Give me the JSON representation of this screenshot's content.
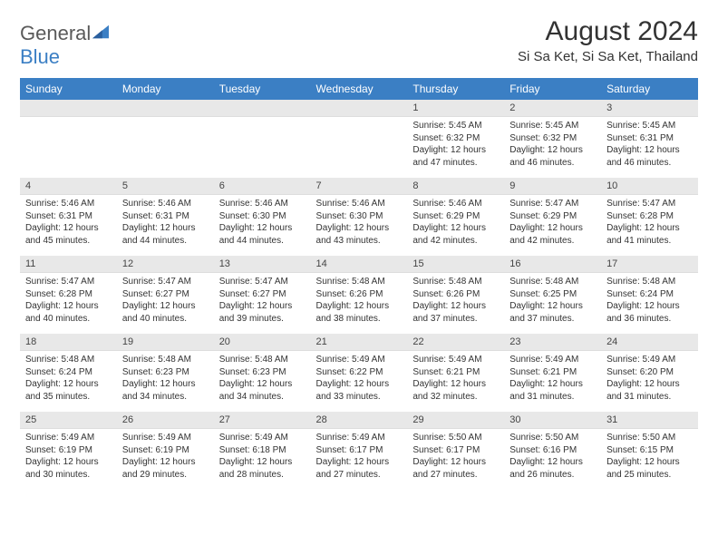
{
  "brand": {
    "part1": "General",
    "part2": "Blue"
  },
  "title": "August 2024",
  "location": "Si Sa Ket, Si Sa Ket, Thailand",
  "colors": {
    "header_bg": "#3b7fc4",
    "header_text": "#ffffff",
    "daynum_bg": "#e8e8e8",
    "body_text": "#333333",
    "logo_gray": "#5a5a5a",
    "logo_blue": "#3b7fc4"
  },
  "weekdays": [
    "Sunday",
    "Monday",
    "Tuesday",
    "Wednesday",
    "Thursday",
    "Friday",
    "Saturday"
  ],
  "layout": {
    "columns": 7,
    "rows": 5,
    "header_fontsize": 12,
    "daynum_fontsize": 11,
    "content_fontsize": 10,
    "title_fontsize": 30,
    "location_fontsize": 15
  },
  "weeks": [
    [
      null,
      null,
      null,
      null,
      {
        "n": "1",
        "sr": "5:45 AM",
        "ss": "6:32 PM",
        "dl": "12 hours and 47 minutes."
      },
      {
        "n": "2",
        "sr": "5:45 AM",
        "ss": "6:32 PM",
        "dl": "12 hours and 46 minutes."
      },
      {
        "n": "3",
        "sr": "5:45 AM",
        "ss": "6:31 PM",
        "dl": "12 hours and 46 minutes."
      }
    ],
    [
      {
        "n": "4",
        "sr": "5:46 AM",
        "ss": "6:31 PM",
        "dl": "12 hours and 45 minutes."
      },
      {
        "n": "5",
        "sr": "5:46 AM",
        "ss": "6:31 PM",
        "dl": "12 hours and 44 minutes."
      },
      {
        "n": "6",
        "sr": "5:46 AM",
        "ss": "6:30 PM",
        "dl": "12 hours and 44 minutes."
      },
      {
        "n": "7",
        "sr": "5:46 AM",
        "ss": "6:30 PM",
        "dl": "12 hours and 43 minutes."
      },
      {
        "n": "8",
        "sr": "5:46 AM",
        "ss": "6:29 PM",
        "dl": "12 hours and 42 minutes."
      },
      {
        "n": "9",
        "sr": "5:47 AM",
        "ss": "6:29 PM",
        "dl": "12 hours and 42 minutes."
      },
      {
        "n": "10",
        "sr": "5:47 AM",
        "ss": "6:28 PM",
        "dl": "12 hours and 41 minutes."
      }
    ],
    [
      {
        "n": "11",
        "sr": "5:47 AM",
        "ss": "6:28 PM",
        "dl": "12 hours and 40 minutes."
      },
      {
        "n": "12",
        "sr": "5:47 AM",
        "ss": "6:27 PM",
        "dl": "12 hours and 40 minutes."
      },
      {
        "n": "13",
        "sr": "5:47 AM",
        "ss": "6:27 PM",
        "dl": "12 hours and 39 minutes."
      },
      {
        "n": "14",
        "sr": "5:48 AM",
        "ss": "6:26 PM",
        "dl": "12 hours and 38 minutes."
      },
      {
        "n": "15",
        "sr": "5:48 AM",
        "ss": "6:26 PM",
        "dl": "12 hours and 37 minutes."
      },
      {
        "n": "16",
        "sr": "5:48 AM",
        "ss": "6:25 PM",
        "dl": "12 hours and 37 minutes."
      },
      {
        "n": "17",
        "sr": "5:48 AM",
        "ss": "6:24 PM",
        "dl": "12 hours and 36 minutes."
      }
    ],
    [
      {
        "n": "18",
        "sr": "5:48 AM",
        "ss": "6:24 PM",
        "dl": "12 hours and 35 minutes."
      },
      {
        "n": "19",
        "sr": "5:48 AM",
        "ss": "6:23 PM",
        "dl": "12 hours and 34 minutes."
      },
      {
        "n": "20",
        "sr": "5:48 AM",
        "ss": "6:23 PM",
        "dl": "12 hours and 34 minutes."
      },
      {
        "n": "21",
        "sr": "5:49 AM",
        "ss": "6:22 PM",
        "dl": "12 hours and 33 minutes."
      },
      {
        "n": "22",
        "sr": "5:49 AM",
        "ss": "6:21 PM",
        "dl": "12 hours and 32 minutes."
      },
      {
        "n": "23",
        "sr": "5:49 AM",
        "ss": "6:21 PM",
        "dl": "12 hours and 31 minutes."
      },
      {
        "n": "24",
        "sr": "5:49 AM",
        "ss": "6:20 PM",
        "dl": "12 hours and 31 minutes."
      }
    ],
    [
      {
        "n": "25",
        "sr": "5:49 AM",
        "ss": "6:19 PM",
        "dl": "12 hours and 30 minutes."
      },
      {
        "n": "26",
        "sr": "5:49 AM",
        "ss": "6:19 PM",
        "dl": "12 hours and 29 minutes."
      },
      {
        "n": "27",
        "sr": "5:49 AM",
        "ss": "6:18 PM",
        "dl": "12 hours and 28 minutes."
      },
      {
        "n": "28",
        "sr": "5:49 AM",
        "ss": "6:17 PM",
        "dl": "12 hours and 27 minutes."
      },
      {
        "n": "29",
        "sr": "5:50 AM",
        "ss": "6:17 PM",
        "dl": "12 hours and 27 minutes."
      },
      {
        "n": "30",
        "sr": "5:50 AM",
        "ss": "6:16 PM",
        "dl": "12 hours and 26 minutes."
      },
      {
        "n": "31",
        "sr": "5:50 AM",
        "ss": "6:15 PM",
        "dl": "12 hours and 25 minutes."
      }
    ]
  ],
  "labels": {
    "sunrise": "Sunrise:",
    "sunset": "Sunset:",
    "daylight": "Daylight:"
  }
}
